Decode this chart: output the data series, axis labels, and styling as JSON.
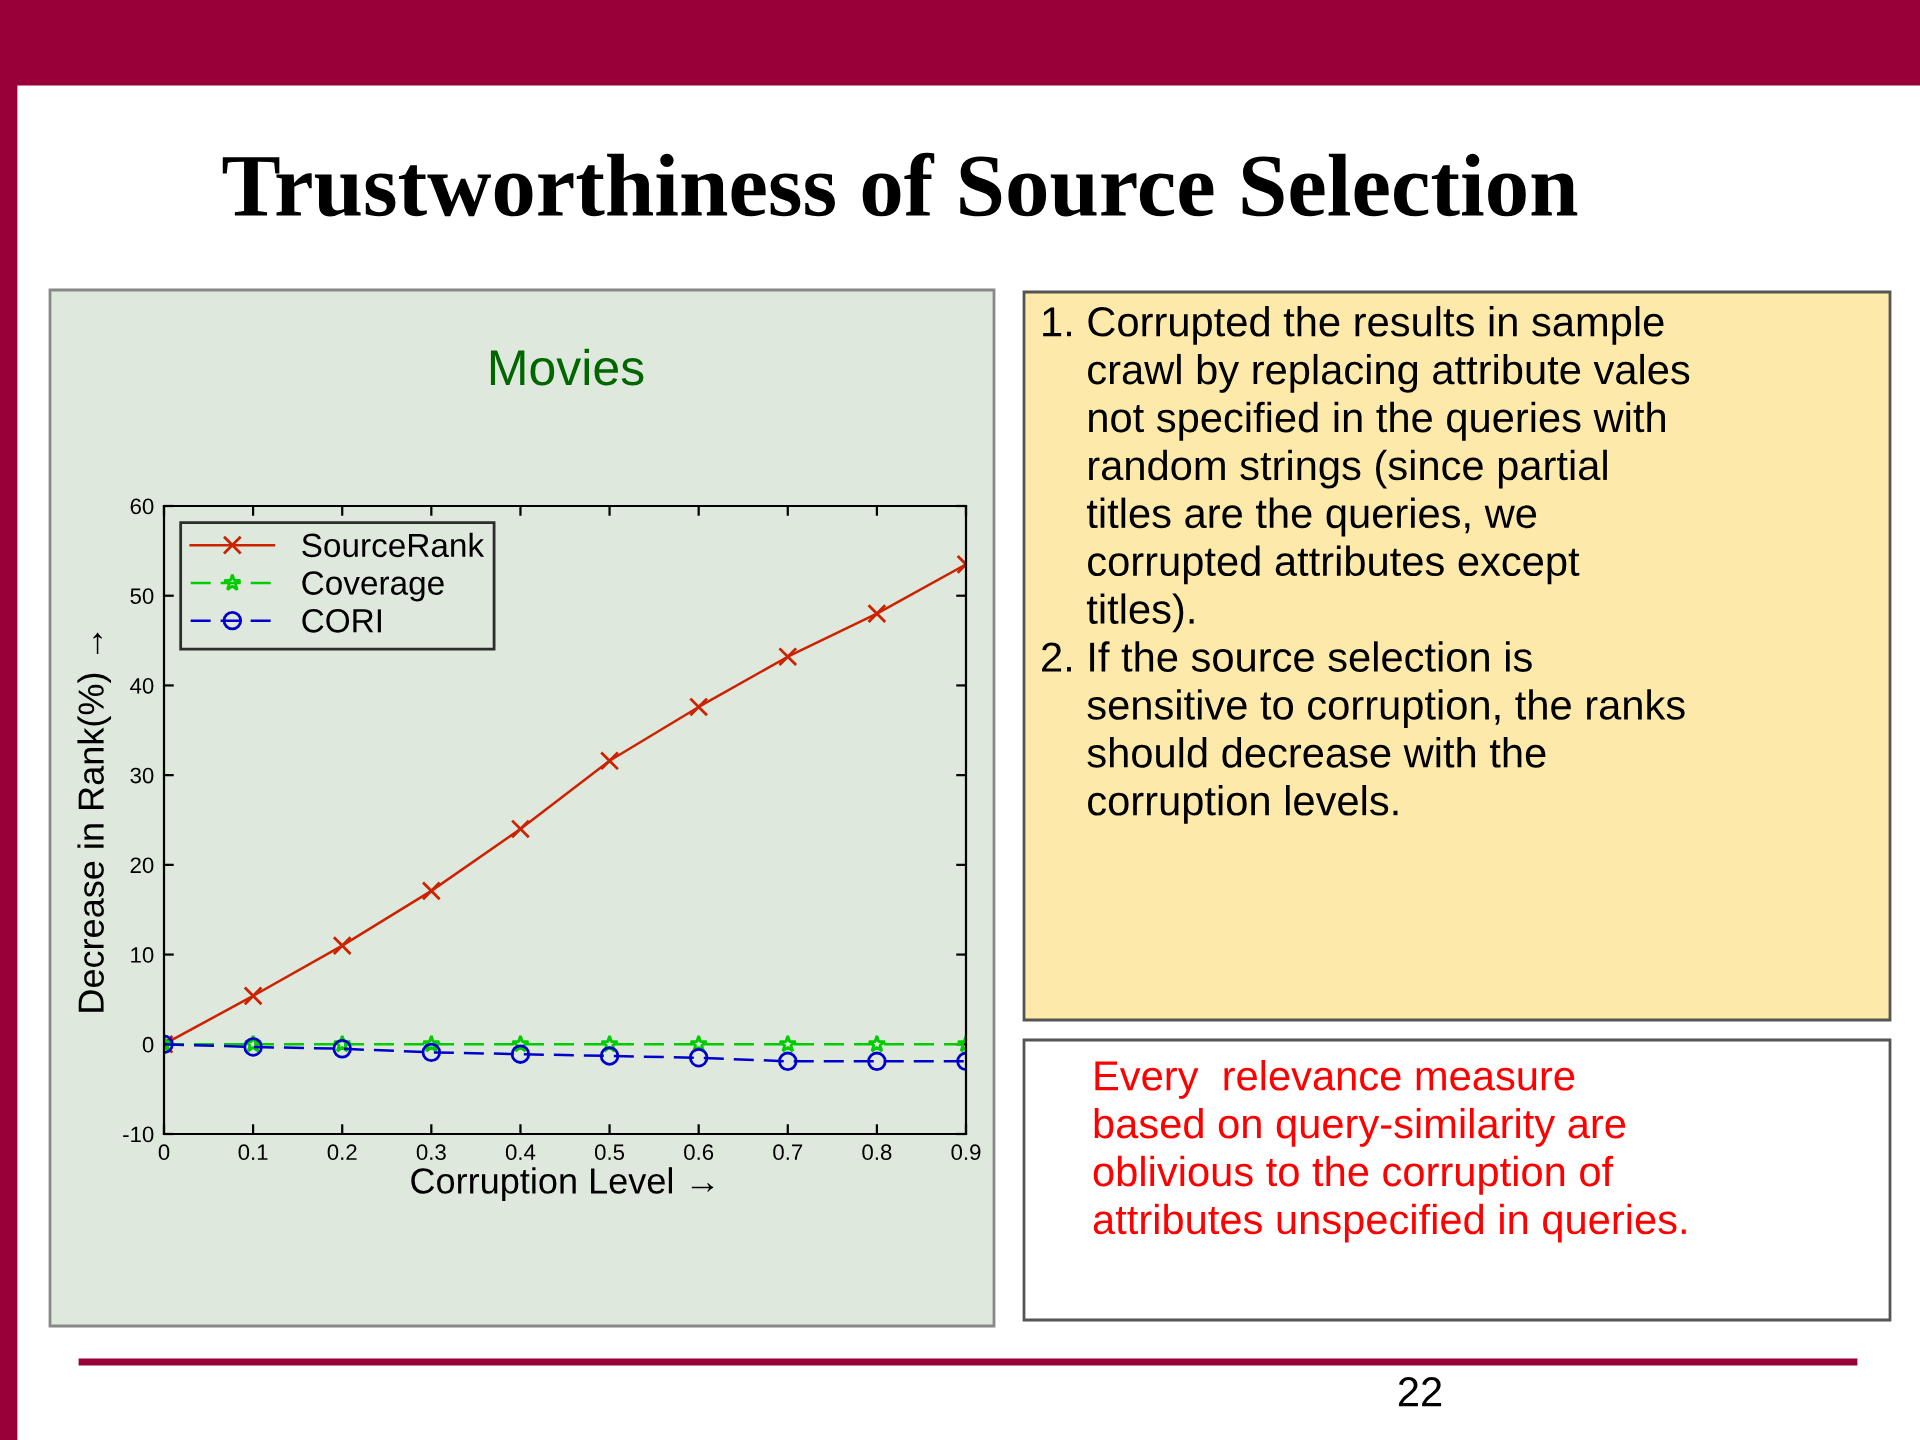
{
  "chart_data": {
    "type": "line",
    "title": "Trustworthiness of Source Selection",
    "subtitle": "Movies",
    "xlabel": "Corruption Level →",
    "ylabel": "Decrease in Rank(%) →",
    "x": [
      0,
      0.1,
      0.2,
      0.3,
      0.4,
      0.5,
      0.6,
      0.7,
      0.8,
      0.9
    ],
    "series": [
      {
        "name": "SourceRank",
        "color": "#cc2200",
        "marker": "cross",
        "line_style": "solid",
        "values": [
          0,
          5.4,
          11.0,
          17.1,
          24.0,
          31.6,
          37.6,
          43.2,
          48.0,
          53.5
        ]
      },
      {
        "name": "Coverage",
        "color": "#00cc00",
        "marker": "star",
        "line_style": "dashed",
        "values": [
          0,
          0,
          0,
          0,
          0,
          0,
          0,
          0,
          0,
          0
        ]
      },
      {
        "name": "CORI",
        "color": "#0000cc",
        "marker": "circle",
        "line_style": "dashed",
        "values": [
          0,
          -0.3,
          -0.5,
          -0.9,
          -1.1,
          -1.3,
          -1.5,
          -1.9,
          -1.9,
          -1.9
        ]
      }
    ],
    "xlim": [
      0,
      0.9
    ],
    "ylim": [
      -10,
      60
    ],
    "xticks": [
      0,
      0.1,
      0.2,
      0.3,
      0.4,
      0.5,
      0.6,
      0.7,
      0.8,
      0.9
    ],
    "yticks": [
      -10,
      0,
      10,
      20,
      30,
      40,
      50,
      60
    ],
    "grid": false,
    "legend": "top left",
    "annotations": [
      "1. Corrupted the results in sample\n    crawl by replacing attribute vales\n    not specified in the queries with\n    random strings (since partial\n    titles are the queries, we\n    corrupted attributes except\n    titles).\n2. If the source selection is\n    sensitive to corruption, the ranks\n    should decrease with the\n    corruption levels.",
      "Every  relevance measure\nbased on query-similarity are\noblivious to the corruption of\nattributes unspecified in queries.",
      "22"
    ]
  }
}
